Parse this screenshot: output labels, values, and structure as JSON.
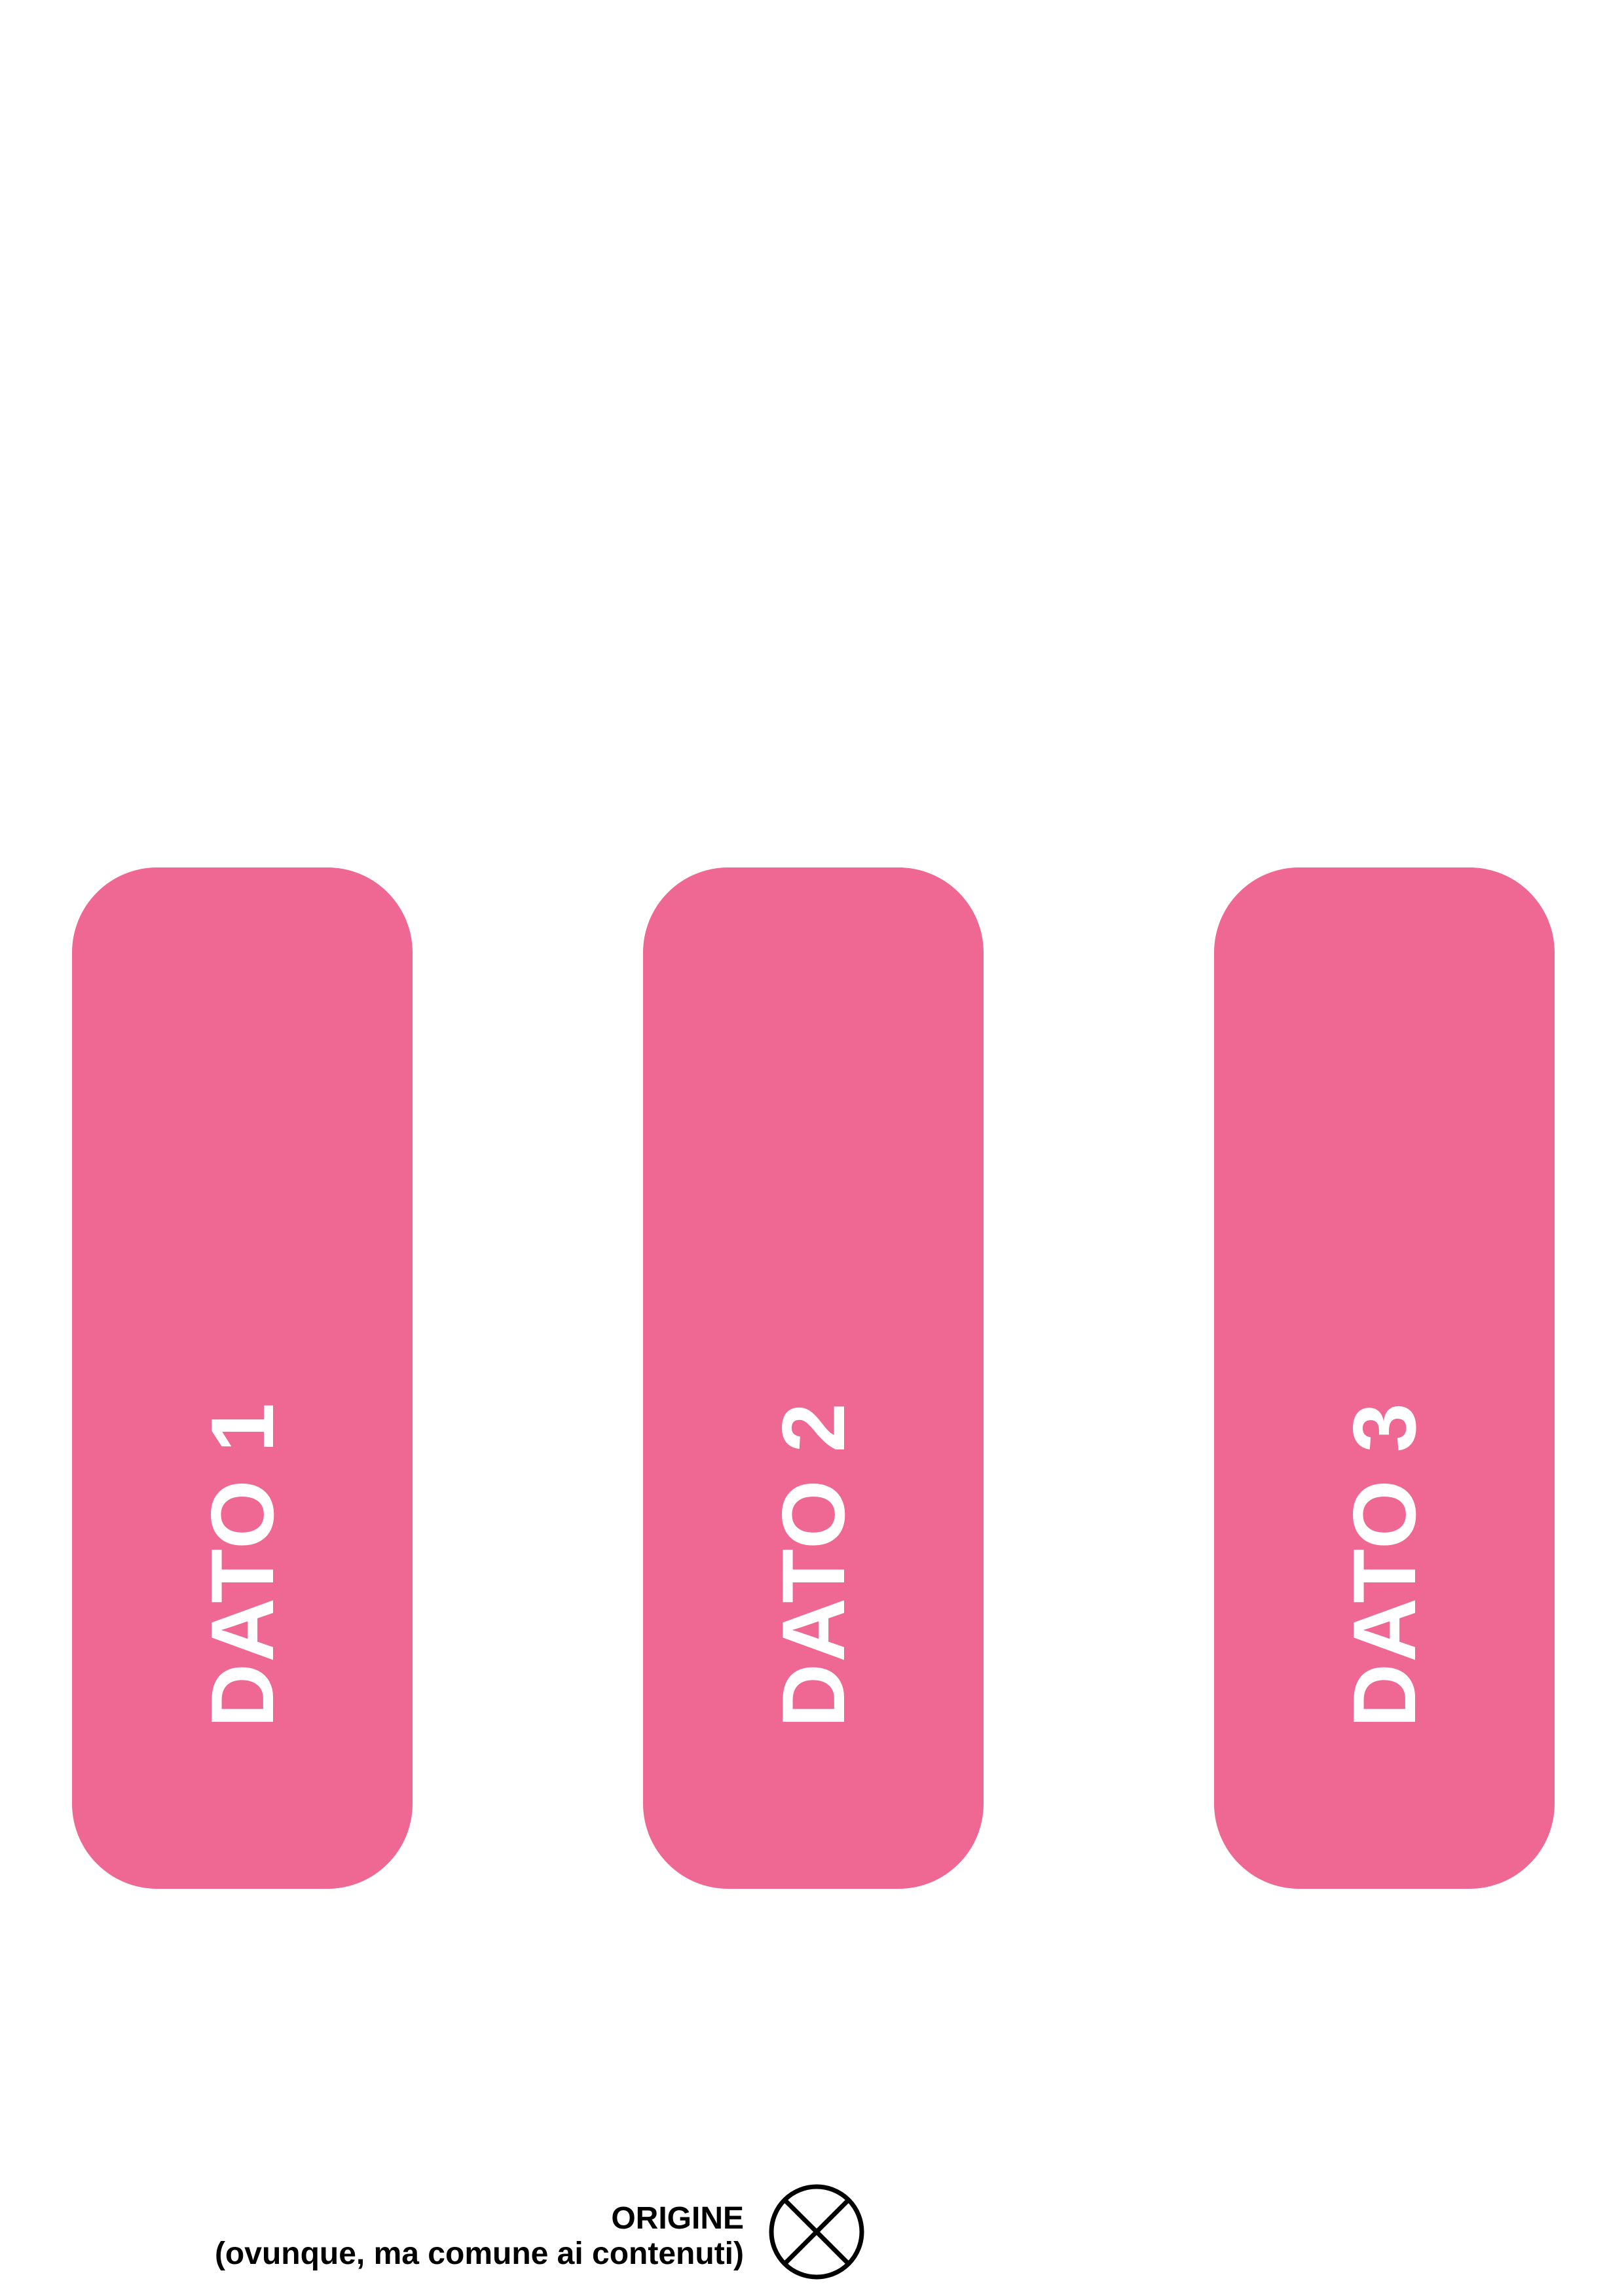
{
  "cards": [
    {
      "label": "DATO 1"
    },
    {
      "label": "DATO 2"
    },
    {
      "label": "DATO 3"
    }
  ],
  "origin": {
    "title": "ORIGINE",
    "subtitle": "(ovunque, ma comune ai contenuti)",
    "icon": "origin-cross-circle-icon"
  },
  "colors": {
    "card_fill": "#ef6793",
    "card_text": "#ffffff",
    "origin_text": "#000000"
  }
}
